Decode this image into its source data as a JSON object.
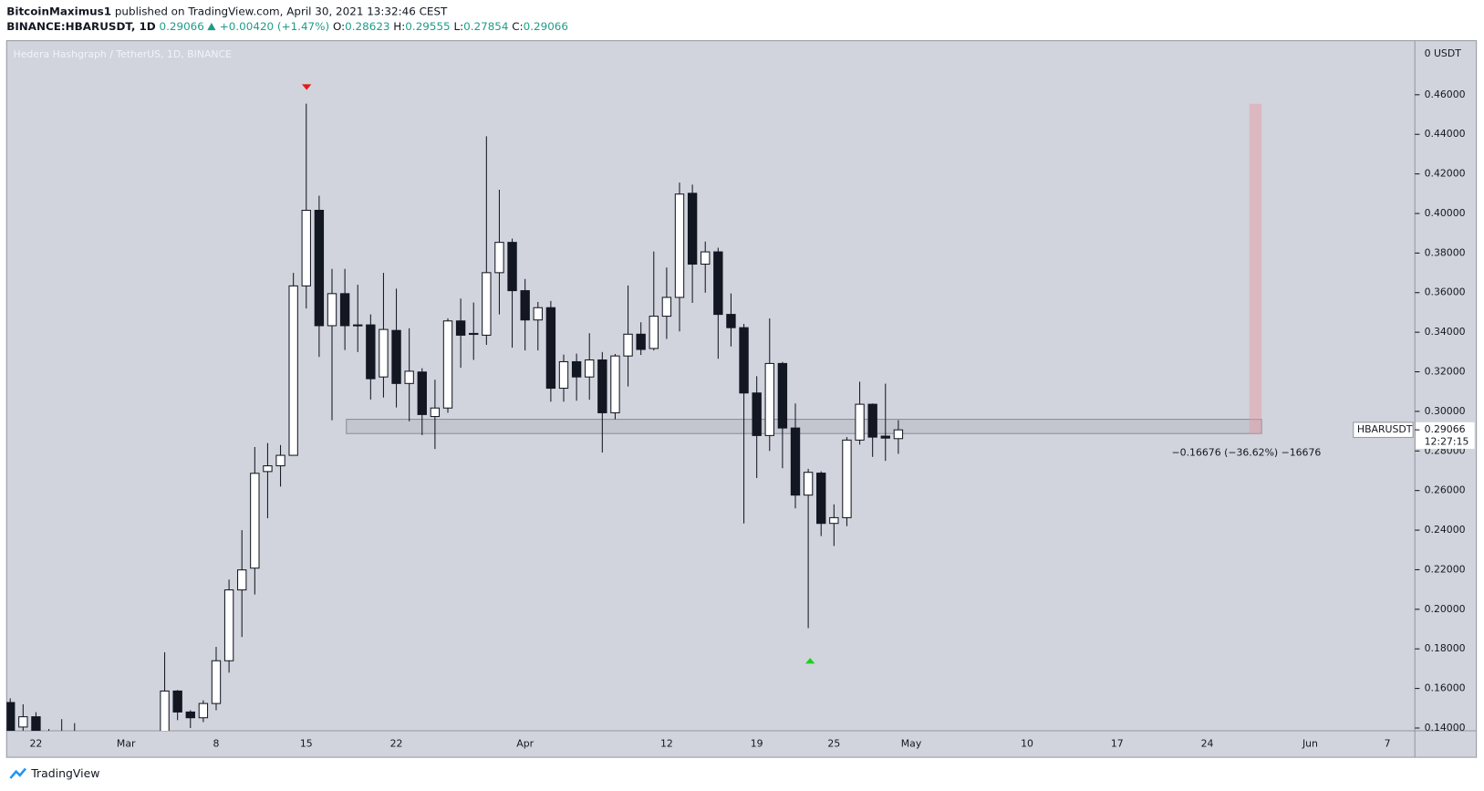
{
  "header": {
    "publisher": "BitcoinMaximus1",
    "published": "published on TradingView.com, April 30, 2021 13:32:46 CEST"
  },
  "symbol_bar": {
    "symbol": "BINANCE:HBARUSDT, 1D",
    "last": "0.29066",
    "change": "+0.00420 (+1.47%)",
    "ohlc": [
      {
        "label": "O:",
        "value": "0.28623"
      },
      {
        "label": "H:",
        "value": "0.29555"
      },
      {
        "label": "L:",
        "value": "0.27854"
      },
      {
        "label": "C:",
        "value": "0.29066"
      }
    ]
  },
  "chart_data": {
    "type": "candlestick",
    "title": "Hedera Hashgraph / TetherUS, 1D, BINANCE",
    "y_unit": "0 USDT",
    "up_color": "#ffffff",
    "down_color": "#131722",
    "categories": [
      null,
      null,
      "22",
      null,
      null,
      null,
      null,
      null,
      null,
      "Mar",
      null,
      null,
      null,
      null,
      null,
      null,
      "8",
      null,
      null,
      null,
      null,
      null,
      null,
      "15",
      null,
      null,
      null,
      null,
      null,
      null,
      "22",
      null,
      null,
      null,
      null,
      null,
      null,
      null,
      null,
      null,
      "Apr",
      null,
      null,
      null,
      null,
      null,
      null,
      null,
      null,
      null,
      null,
      "12",
      null,
      null,
      null,
      null,
      null,
      null,
      "19",
      null,
      null,
      null,
      null,
      null,
      "25",
      null,
      null,
      null,
      null,
      null,
      "May",
      null,
      null,
      null,
      null,
      null,
      null,
      null,
      null,
      "10",
      null,
      null,
      null,
      null,
      null,
      null,
      "17",
      null,
      null,
      null,
      null,
      null,
      null,
      "24",
      null,
      null,
      null,
      null,
      null,
      null,
      null,
      "Jun",
      null,
      null,
      null,
      null,
      null,
      "7",
      null,
      null
    ],
    "open": [
      0.1529,
      0.1405,
      0.1457,
      0.138,
      0.135,
      0.131,
      null,
      null,
      null,
      null,
      null,
      null,
      0.13,
      0.1587,
      0.1481,
      0.1452,
      0.1524,
      0.174,
      0.2098,
      0.2208,
      0.2696,
      0.2725,
      0.2778,
      0.3634,
      0.4016,
      0.3433,
      0.3595,
      0.3437,
      0.3437,
      0.3174,
      0.3409,
      0.3141,
      0.3199,
      0.2974,
      0.3017,
      0.3457,
      0.3389,
      0.3385,
      0.3701,
      0.3854,
      0.361,
      0.3462,
      0.3524,
      0.3117,
      0.3251,
      0.3174,
      0.326,
      0.2993,
      0.328,
      0.339,
      0.3318,
      0.3481,
      0.3576,
      0.4102,
      0.3744,
      0.3806,
      0.349,
      0.3423,
      0.3093,
      0.2878,
      0.3242,
      0.2916,
      0.2577,
      0.2688,
      0.2434,
      0.2463,
      0.2855,
      0.3036,
      0.2875,
      0.28623,
      null,
      null,
      null,
      null,
      null,
      null,
      null,
      null,
      null,
      null,
      null,
      null,
      null,
      null,
      null,
      null,
      null,
      null,
      null,
      null,
      null,
      null,
      null,
      null,
      null,
      null,
      null,
      null,
      null,
      null,
      null,
      null,
      null,
      null,
      null,
      null,
      null,
      null,
      null,
      null
    ],
    "high": [
      0.155,
      0.152,
      0.148,
      0.1395,
      0.1445,
      0.1425,
      null,
      null,
      null,
      null,
      null,
      null,
      0.1783,
      0.1592,
      0.149,
      0.154,
      0.181,
      0.215,
      0.24,
      0.282,
      0.284,
      0.283,
      0.37,
      0.4555,
      0.409,
      0.372,
      0.372,
      0.364,
      0.349,
      0.37,
      0.362,
      0.342,
      0.3218,
      0.316,
      0.347,
      0.357,
      0.355,
      0.439,
      0.412,
      0.3873,
      0.3669,
      0.3553,
      0.3558,
      0.3287,
      0.3292,
      0.3395,
      0.33,
      0.329,
      0.3636,
      0.345,
      0.3808,
      0.3727,
      0.4156,
      0.4146,
      0.3858,
      0.3827,
      0.3596,
      0.3442,
      0.3178,
      0.347,
      0.325,
      0.304,
      0.271,
      0.2697,
      0.253,
      0.287,
      0.315,
      0.304,
      0.314,
      0.29555,
      null,
      null,
      null,
      null,
      null,
      null,
      null,
      null,
      null,
      null,
      null,
      null,
      null,
      null,
      null,
      null,
      null,
      null,
      null,
      null,
      null,
      null,
      null,
      null,
      null,
      null,
      null,
      null,
      null,
      null,
      null,
      null,
      null,
      null,
      null,
      null,
      null,
      null,
      null,
      null
    ],
    "low": [
      0.135,
      0.135,
      0.135,
      0.13,
      0.125,
      0.123,
      null,
      null,
      null,
      null,
      null,
      null,
      0.128,
      0.144,
      0.14,
      0.143,
      0.149,
      0.168,
      0.186,
      0.2075,
      0.246,
      0.262,
      0.2778,
      0.352,
      0.3275,
      0.2955,
      0.331,
      0.33,
      0.306,
      0.307,
      0.302,
      0.295,
      0.288,
      0.281,
      0.2993,
      0.322,
      0.326,
      0.3336,
      0.349,
      0.3322,
      0.3308,
      0.3308,
      0.3049,
      0.3049,
      0.3054,
      0.3059,
      0.2792,
      0.296,
      0.3126,
      0.3285,
      0.3308,
      0.3366,
      0.3404,
      0.3548,
      0.36,
      0.3266,
      0.3328,
      0.2434,
      0.2663,
      0.28,
      0.2713,
      0.251,
      0.1905,
      0.237,
      0.232,
      0.242,
      0.2832,
      0.277,
      0.275,
      0.27854,
      null,
      null,
      null,
      null,
      null,
      null,
      null,
      null,
      null,
      null,
      null,
      null,
      null,
      null,
      null,
      null,
      null,
      null,
      null,
      null,
      null,
      null,
      null,
      null,
      null,
      null,
      null,
      null,
      null,
      null,
      null,
      null,
      null,
      null,
      null,
      null,
      null,
      null,
      null,
      null
    ],
    "close": [
      0.138,
      0.1457,
      0.138,
      0.133,
      0.131,
      0.128,
      null,
      null,
      null,
      null,
      null,
      null,
      0.1587,
      0.1481,
      0.1452,
      0.1524,
      0.174,
      0.2098,
      0.2199,
      0.2687,
      0.2725,
      0.2778,
      0.3634,
      0.4016,
      0.3433,
      0.3595,
      0.3433,
      0.3433,
      0.3165,
      0.3414,
      0.3141,
      0.3203,
      0.2984,
      0.3017,
      0.3457,
      0.3385,
      0.3394,
      0.3701,
      0.3854,
      0.361,
      0.3462,
      0.3524,
      0.3117,
      0.3251,
      0.3174,
      0.326,
      0.2993,
      0.328,
      0.339,
      0.3313,
      0.3481,
      0.3576,
      0.4098,
      0.3744,
      0.3806,
      0.349,
      0.3423,
      0.3093,
      0.2878,
      0.3242,
      0.2916,
      0.2577,
      0.2692,
      0.2434,
      0.2463,
      0.2855,
      0.3036,
      0.287,
      0.2865,
      0.29066,
      null,
      null,
      null,
      null,
      null,
      null,
      null,
      null,
      null,
      null,
      null,
      null,
      null,
      null,
      null,
      null,
      null,
      null,
      null,
      null,
      null,
      null,
      null,
      null,
      null,
      null,
      null,
      null,
      null,
      null,
      null,
      null,
      null,
      null,
      null,
      null,
      null,
      null,
      null,
      null
    ],
    "ylim": [
      0.1386,
      0.4873
    ],
    "yticks": [
      {
        "value": 0.14,
        "label": "0.14000"
      },
      {
        "value": 0.16,
        "label": "0.16000"
      },
      {
        "value": 0.18,
        "label": "0.18000"
      },
      {
        "value": 0.2,
        "label": "0.20000"
      },
      {
        "value": 0.22,
        "label": "0.22000"
      },
      {
        "value": 0.24,
        "label": "0.24000"
      },
      {
        "value": 0.26,
        "label": "0.26000"
      },
      {
        "value": 0.28,
        "label": "0.28000"
      },
      {
        "value": 0.3,
        "label": "0.30000"
      },
      {
        "value": 0.32,
        "label": "0.32000"
      },
      {
        "value": 0.34,
        "label": "0.34000"
      },
      {
        "value": 0.36,
        "label": "0.36000"
      },
      {
        "value": 0.38,
        "label": "0.38000"
      },
      {
        "value": 0.4,
        "label": "0.40000"
      },
      {
        "value": 0.42,
        "label": "0.42000"
      },
      {
        "value": 0.44,
        "label": "0.44000"
      },
      {
        "value": 0.46,
        "label": "0.46000"
      }
    ],
    "zone": [
      0.2888,
      0.296
    ],
    "measure": {
      "range": [
        0.28864,
        0.4554
      ],
      "label": "−0.16676 (−36.62%) −16676"
    },
    "price_tag": {
      "symbol": "HBARUSDT",
      "value": 0.29066,
      "countdown": "12:27:15"
    }
  },
  "footer": {
    "brand": "TradingView"
  }
}
